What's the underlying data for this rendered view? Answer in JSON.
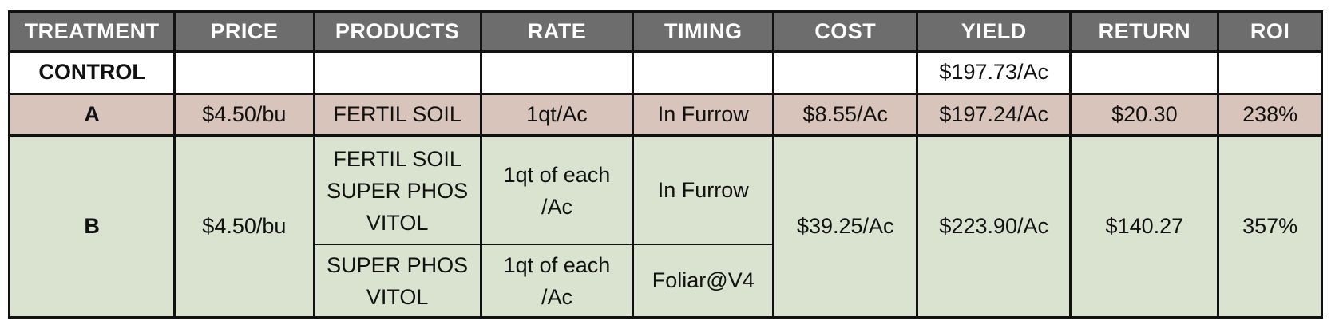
{
  "table": {
    "headers": [
      "TREATMENT",
      "PRICE",
      "PRODUCTS",
      "RATE",
      "TIMING",
      "COST",
      "YIELD",
      "RETURN",
      "ROI"
    ],
    "control": {
      "treatment": "CONTROL",
      "yield": "$197.73/Ac"
    },
    "a": {
      "treatment": "A",
      "price": "$4.50/bu",
      "products": "FERTIL SOIL",
      "rate": "1qt/Ac",
      "timing": "In Furrow",
      "cost": "$8.55/Ac",
      "yield": "$197.24/Ac",
      "return": "$20.30",
      "roi": "238%"
    },
    "b": {
      "treatment": "B",
      "price": "$4.50/bu",
      "app1": {
        "products": [
          "FERTIL SOIL",
          "SUPER PHOS",
          "VITOL"
        ],
        "rate": [
          "1qt of each",
          "/Ac"
        ],
        "timing": "In Furrow"
      },
      "app2": {
        "products": [
          "SUPER PHOS",
          "VITOL"
        ],
        "rate": [
          "1qt of each",
          "/Ac"
        ],
        "timing": "Foliar@V4"
      },
      "cost": "$39.25/Ac",
      "yield": "$223.90/Ac",
      "return": "$140.27",
      "roi": "357%"
    },
    "colors": {
      "header_bg": "#6d6d6d",
      "row_a_bg": "#d9c4bb",
      "row_b_bg": "#d9e3d0",
      "border": "#111111"
    }
  }
}
